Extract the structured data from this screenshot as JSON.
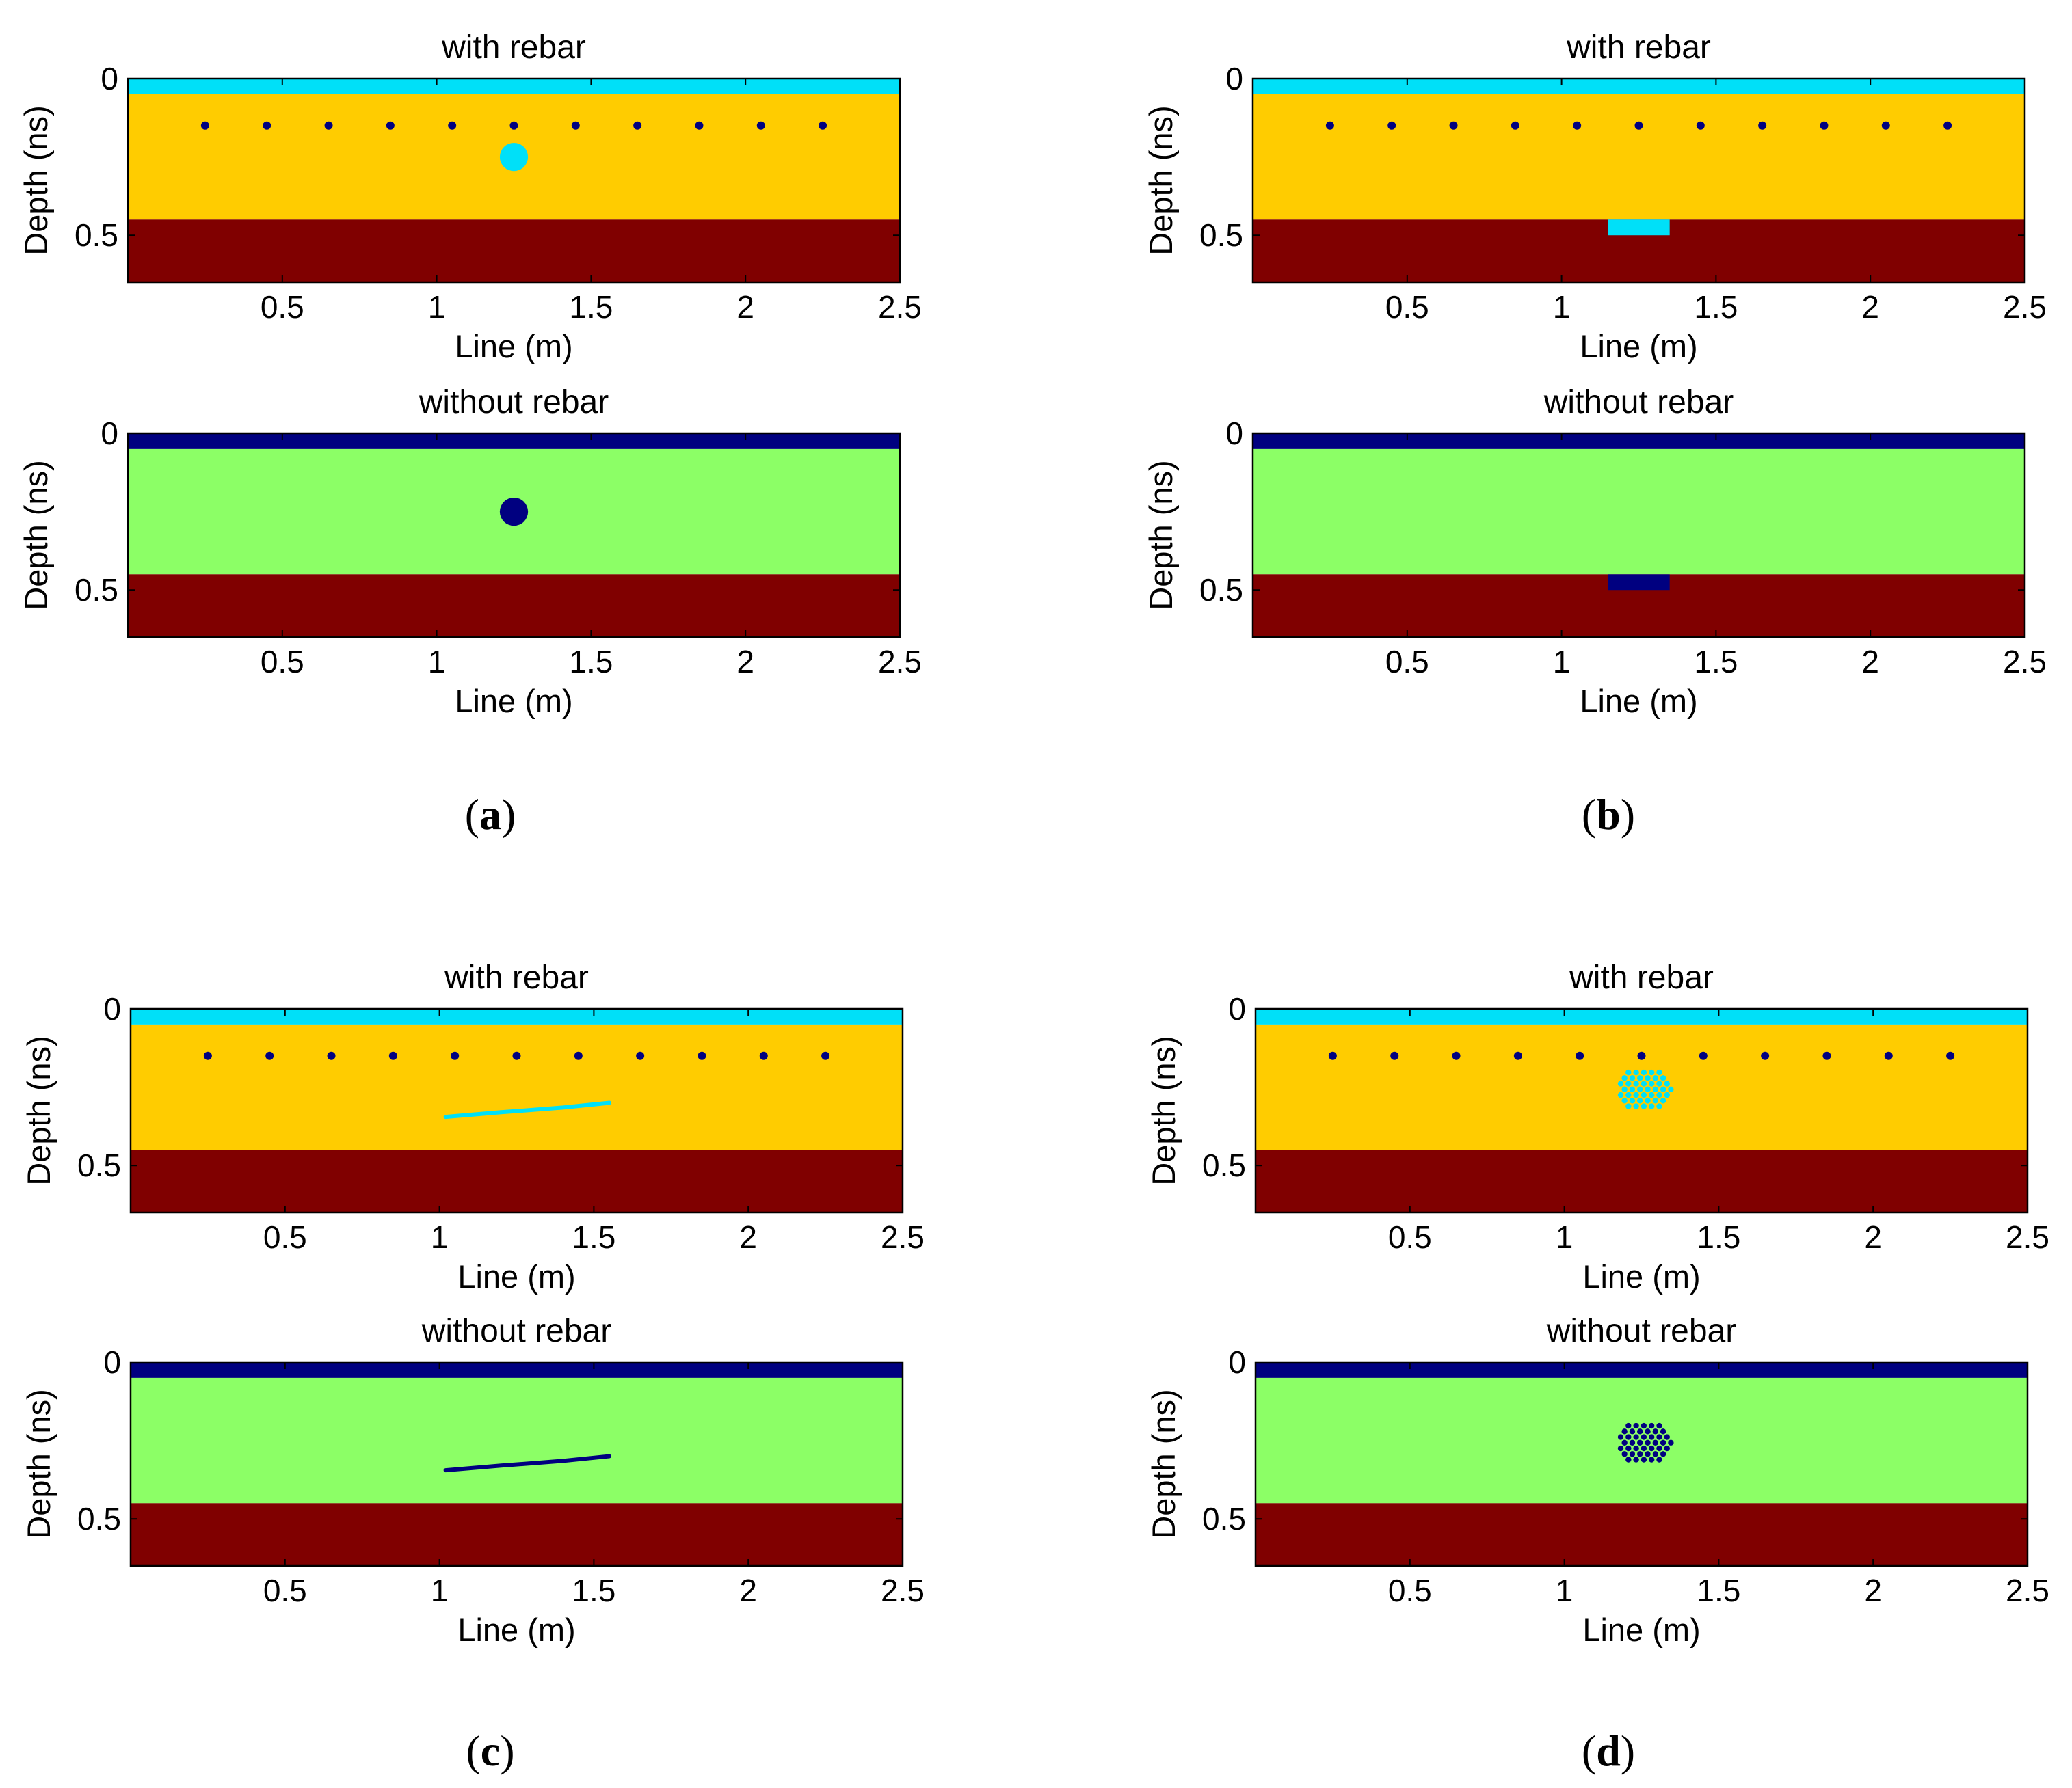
{
  "colors": {
    "cyan": "#00e0f8",
    "yellow": "#ffcc00",
    "darkred": "#800000",
    "navy": "#000080",
    "green": "#8cff66"
  },
  "chart_data": [
    {
      "panel": "a",
      "position": "top",
      "type": "heatmap",
      "title": "with rebar",
      "xlabel": "Line (m)",
      "ylabel": "Depth (ns)",
      "xlim": [
        0,
        2.5
      ],
      "ylim": [
        0,
        0.65
      ],
      "xticks": [
        0.5,
        1,
        1.5,
        2,
        2.5
      ],
      "xtick_labels": [
        "0.5",
        "1",
        "1.5",
        "2",
        "2.5"
      ],
      "yticks": [
        0,
        0.5
      ],
      "ytick_labels": [
        "0",
        "0.5"
      ],
      "layers": [
        {
          "name": "surface layer",
          "color": "cyan",
          "y0": 0,
          "y1": 0.05
        },
        {
          "name": "concrete",
          "color": "yellow",
          "y0": 0.05,
          "y1": 0.45
        },
        {
          "name": "base",
          "color": "darkred",
          "y0": 0.45,
          "y1": 0.65
        }
      ],
      "rebars": {
        "color": "navy",
        "depth": 0.15,
        "x": [
          0.25,
          0.45,
          0.65,
          0.85,
          1.05,
          1.25,
          1.45,
          1.65,
          1.85,
          2.05,
          2.25
        ]
      },
      "defect": {
        "kind": "circle",
        "color": "cyan",
        "x": 1.25,
        "y": 0.25,
        "r": 0.045
      }
    },
    {
      "panel": "a",
      "position": "bottom",
      "type": "heatmap",
      "title": "without rebar",
      "xlabel": "Line (m)",
      "ylabel": "Depth (ns)",
      "xlim": [
        0,
        2.5
      ],
      "ylim": [
        0,
        0.65
      ],
      "xticks": [
        0.5,
        1,
        1.5,
        2,
        2.5
      ],
      "xtick_labels": [
        "0.5",
        "1",
        "1.5",
        "2",
        "2.5"
      ],
      "yticks": [
        0,
        0.5
      ],
      "ytick_labels": [
        "0",
        "0.5"
      ],
      "layers": [
        {
          "name": "surface layer",
          "color": "navy",
          "y0": 0,
          "y1": 0.05
        },
        {
          "name": "concrete",
          "color": "green",
          "y0": 0.05,
          "y1": 0.45
        },
        {
          "name": "base",
          "color": "darkred",
          "y0": 0.45,
          "y1": 0.65
        }
      ],
      "rebars": null,
      "defect": {
        "kind": "circle",
        "color": "navy",
        "x": 1.25,
        "y": 0.25,
        "r": 0.045
      }
    },
    {
      "panel": "b",
      "position": "top",
      "type": "heatmap",
      "title": "with rebar",
      "xlabel": "Line (m)",
      "ylabel": "Depth (ns)",
      "xlim": [
        0,
        2.5
      ],
      "ylim": [
        0,
        0.65
      ],
      "xticks": [
        0.5,
        1,
        1.5,
        2,
        2.5
      ],
      "xtick_labels": [
        "0.5",
        "1",
        "1.5",
        "2",
        "2.5"
      ],
      "yticks": [
        0,
        0.5
      ],
      "ytick_labels": [
        "0",
        "0.5"
      ],
      "layers": [
        {
          "name": "surface layer",
          "color": "cyan",
          "y0": 0,
          "y1": 0.05
        },
        {
          "name": "concrete",
          "color": "yellow",
          "y0": 0.05,
          "y1": 0.45
        },
        {
          "name": "base",
          "color": "darkred",
          "y0": 0.45,
          "y1": 0.65
        }
      ],
      "rebars": {
        "color": "navy",
        "depth": 0.15,
        "x": [
          0.25,
          0.45,
          0.65,
          0.85,
          1.05,
          1.25,
          1.45,
          1.65,
          1.85,
          2.05,
          2.25
        ]
      },
      "defect": {
        "kind": "rect",
        "color": "cyan",
        "x0": 1.15,
        "x1": 1.35,
        "y0": 0.45,
        "y1": 0.5
      }
    },
    {
      "panel": "b",
      "position": "bottom",
      "type": "heatmap",
      "title": "without rebar",
      "xlabel": "Line (m)",
      "ylabel": "Depth (ns)",
      "xlim": [
        0,
        2.5
      ],
      "ylim": [
        0,
        0.65
      ],
      "xticks": [
        0.5,
        1,
        1.5,
        2,
        2.5
      ],
      "xtick_labels": [
        "0.5",
        "1",
        "1.5",
        "2",
        "2.5"
      ],
      "yticks": [
        0,
        0.5
      ],
      "ytick_labels": [
        "0",
        "0.5"
      ],
      "layers": [
        {
          "name": "surface layer",
          "color": "navy",
          "y0": 0,
          "y1": 0.05
        },
        {
          "name": "concrete",
          "color": "green",
          "y0": 0.05,
          "y1": 0.45
        },
        {
          "name": "base",
          "color": "darkred",
          "y0": 0.45,
          "y1": 0.65
        }
      ],
      "rebars": null,
      "defect": {
        "kind": "rect",
        "color": "navy",
        "x0": 1.15,
        "x1": 1.35,
        "y0": 0.45,
        "y1": 0.5
      }
    },
    {
      "panel": "c",
      "position": "top",
      "type": "heatmap",
      "title": "with rebar",
      "xlabel": "Line (m)",
      "ylabel": "Depth (ns)",
      "xlim": [
        0,
        2.5
      ],
      "ylim": [
        0,
        0.65
      ],
      "xticks": [
        0.5,
        1,
        1.5,
        2,
        2.5
      ],
      "xtick_labels": [
        "0.5",
        "1",
        "1.5",
        "2",
        "2.5"
      ],
      "yticks": [
        0,
        0.5
      ],
      "ytick_labels": [
        "0",
        "0.5"
      ],
      "layers": [
        {
          "name": "surface layer",
          "color": "cyan",
          "y0": 0,
          "y1": 0.05
        },
        {
          "name": "concrete",
          "color": "yellow",
          "y0": 0.05,
          "y1": 0.45
        },
        {
          "name": "base",
          "color": "darkred",
          "y0": 0.45,
          "y1": 0.65
        }
      ],
      "rebars": {
        "color": "navy",
        "depth": 0.15,
        "x": [
          0.25,
          0.45,
          0.65,
          0.85,
          1.05,
          1.25,
          1.45,
          1.65,
          1.85,
          2.05,
          2.25
        ]
      },
      "defect": {
        "kind": "crack",
        "color": "cyan",
        "points": [
          [
            1.02,
            0.345
          ],
          [
            1.2,
            0.33
          ],
          [
            1.4,
            0.315
          ],
          [
            1.55,
            0.3
          ]
        ]
      }
    },
    {
      "panel": "c",
      "position": "bottom",
      "type": "heatmap",
      "title": "without rebar",
      "xlabel": "Line (m)",
      "ylabel": "Depth (ns)",
      "xlim": [
        0,
        2.5
      ],
      "ylim": [
        0,
        0.65
      ],
      "xticks": [
        0.5,
        1,
        1.5,
        2,
        2.5
      ],
      "xtick_labels": [
        "0.5",
        "1",
        "1.5",
        "2",
        "2.5"
      ],
      "yticks": [
        0,
        0.5
      ],
      "ytick_labels": [
        "0",
        "0.5"
      ],
      "layers": [
        {
          "name": "surface layer",
          "color": "navy",
          "y0": 0,
          "y1": 0.05
        },
        {
          "name": "concrete",
          "color": "green",
          "y0": 0.05,
          "y1": 0.45
        },
        {
          "name": "base",
          "color": "darkred",
          "y0": 0.45,
          "y1": 0.65
        }
      ],
      "rebars": null,
      "defect": {
        "kind": "crack",
        "color": "navy",
        "points": [
          [
            1.02,
            0.345
          ],
          [
            1.2,
            0.33
          ],
          [
            1.4,
            0.315
          ],
          [
            1.55,
            0.3
          ]
        ]
      }
    },
    {
      "panel": "d",
      "position": "top",
      "type": "heatmap",
      "title": "with rebar",
      "xlabel": "Line (m)",
      "ylabel": "Depth (ns)",
      "xlim": [
        0,
        2.5
      ],
      "ylim": [
        0,
        0.65
      ],
      "xticks": [
        0.5,
        1,
        1.5,
        2,
        2.5
      ],
      "xtick_labels": [
        "0.5",
        "1",
        "1.5",
        "2",
        "2.5"
      ],
      "yticks": [
        0,
        0.5
      ],
      "ytick_labels": [
        "0",
        "0.5"
      ],
      "layers": [
        {
          "name": "surface layer",
          "color": "cyan",
          "y0": 0,
          "y1": 0.05
        },
        {
          "name": "concrete",
          "color": "yellow",
          "y0": 0.05,
          "y1": 0.45
        },
        {
          "name": "base",
          "color": "darkred",
          "y0": 0.45,
          "y1": 0.65
        }
      ],
      "rebars": {
        "color": "navy",
        "depth": 0.15,
        "x": [
          0.25,
          0.45,
          0.65,
          0.85,
          1.05,
          1.25,
          1.45,
          1.65,
          1.85,
          2.05,
          2.25
        ]
      },
      "defect": {
        "kind": "voids",
        "color": "cyan",
        "center": [
          1.26,
          0.255
        ],
        "rx": 0.09,
        "ry": 0.07,
        "spacing_x": 0.025,
        "spacing_y": 0.018
      }
    },
    {
      "panel": "d",
      "position": "bottom",
      "type": "heatmap",
      "title": "without rebar",
      "xlabel": "Line (m)",
      "ylabel": "Depth (ns)",
      "xlim": [
        0,
        2.5
      ],
      "ylim": [
        0,
        0.65
      ],
      "xticks": [
        0.5,
        1,
        1.5,
        2,
        2.5
      ],
      "xtick_labels": [
        "0.5",
        "1",
        "1.5",
        "2",
        "2.5"
      ],
      "yticks": [
        0,
        0.5
      ],
      "ytick_labels": [
        "0",
        "0.5"
      ],
      "layers": [
        {
          "name": "surface layer",
          "color": "navy",
          "y0": 0,
          "y1": 0.05
        },
        {
          "name": "concrete",
          "color": "green",
          "y0": 0.05,
          "y1": 0.45
        },
        {
          "name": "base",
          "color": "darkred",
          "y0": 0.45,
          "y1": 0.65
        }
      ],
      "rebars": null,
      "defect": {
        "kind": "voids",
        "color": "navy",
        "center": [
          1.26,
          0.255
        ],
        "rx": 0.09,
        "ry": 0.07,
        "spacing_x": 0.025,
        "spacing_y": 0.018
      }
    }
  ],
  "panel_labels": {
    "a": "a",
    "b": "b",
    "c": "c",
    "d": "d"
  }
}
